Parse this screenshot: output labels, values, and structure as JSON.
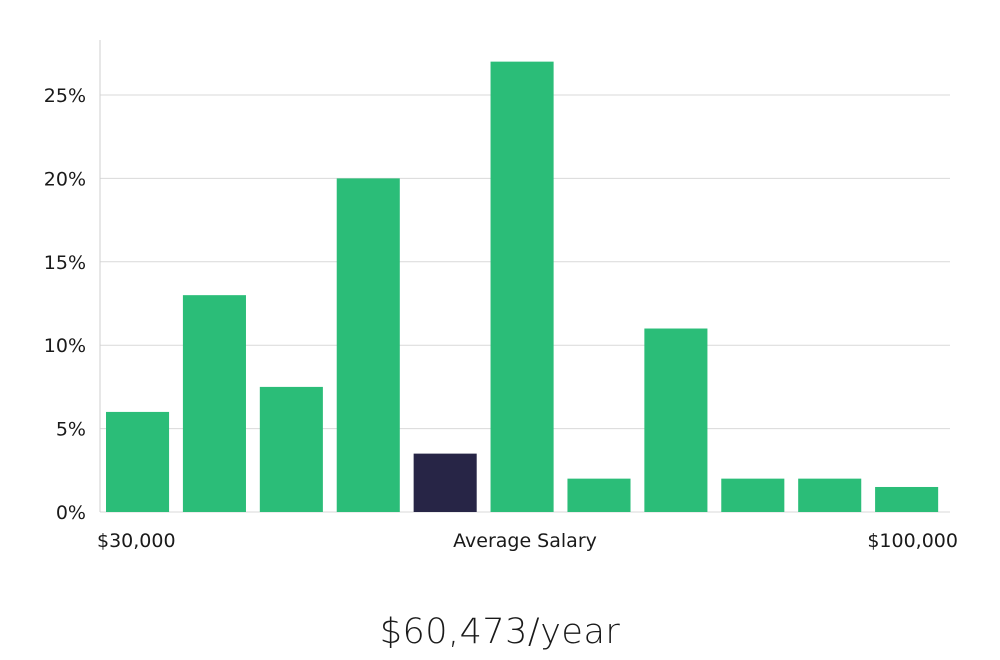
{
  "chart_data": {
    "type": "bar",
    "values": [
      6,
      13,
      7.5,
      20,
      3.5,
      27,
      2,
      11,
      2,
      2,
      1.5
    ],
    "highlight_index": 4,
    "yticks": [
      0,
      5,
      10,
      15,
      20,
      25
    ],
    "ytick_labels": [
      "0%",
      "5%",
      "10%",
      "15%",
      "20%",
      "25%"
    ],
    "ylim": [
      0,
      28
    ],
    "grid": true,
    "x_axis_labels": {
      "left": "$30,000",
      "middle": "Average Salary",
      "right": "$100,000"
    },
    "colors": {
      "bar": "#2bbd78",
      "highlight": "#272546",
      "grid": "#d9d9d9",
      "axis": "#cfcfcf"
    }
  },
  "salary": "$60,473/year"
}
